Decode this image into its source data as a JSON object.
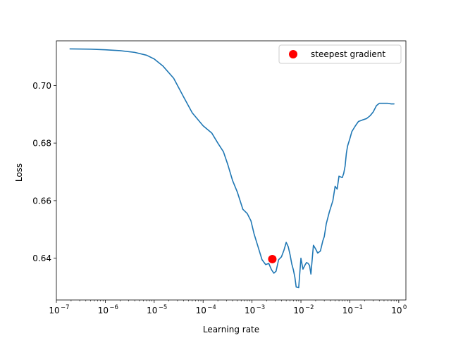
{
  "chart_data": {
    "type": "line",
    "title": "",
    "xlabel": "Learning rate",
    "ylabel": "Loss",
    "xscale": "log",
    "xlim": [
      1e-07,
      1.4
    ],
    "ylim": [
      0.6255,
      0.7155
    ],
    "grid": false,
    "legend_placement": "top-right",
    "x_ticks": [
      {
        "value": 1e-07,
        "label": "10",
        "exp": "−7"
      },
      {
        "value": 1e-06,
        "label": "10",
        "exp": "−6"
      },
      {
        "value": 1e-05,
        "label": "10",
        "exp": "−5"
      },
      {
        "value": 0.0001,
        "label": "10",
        "exp": "−4"
      },
      {
        "value": 0.001,
        "label": "10",
        "exp": "−3"
      },
      {
        "value": 0.01,
        "label": "10",
        "exp": "−2"
      },
      {
        "value": 0.1,
        "label": "10",
        "exp": "−1"
      },
      {
        "value": 1,
        "label": "10",
        "exp": "0"
      }
    ],
    "y_ticks": [
      {
        "value": 0.64,
        "label": "0.64"
      },
      {
        "value": 0.66,
        "label": "0.66"
      },
      {
        "value": 0.68,
        "label": "0.68"
      },
      {
        "value": 0.7,
        "label": "0.70"
      }
    ],
    "series": [
      {
        "color": "#1f77b4",
        "x": [
          1.9e-07,
          5e-07,
          1e-06,
          2e-06,
          4e-06,
          7e-06,
          1e-05,
          1.5e-05,
          2.5e-05,
          4e-05,
          6e-05,
          0.0001,
          0.00015,
          0.0002,
          0.00026,
          0.00032,
          0.0004,
          0.0005,
          0.00065,
          0.0008,
          0.00095,
          0.0011,
          0.0013,
          0.0016,
          0.0019,
          0.0022,
          0.0025,
          0.0028,
          0.0031,
          0.0035,
          0.004,
          0.0045,
          0.005,
          0.0055,
          0.006,
          0.0065,
          0.007,
          0.0075,
          0.008,
          0.009,
          0.01,
          0.011,
          0.012,
          0.013,
          0.014,
          0.015,
          0.016,
          0.018,
          0.02,
          0.022,
          0.025,
          0.028,
          0.03,
          0.033,
          0.038,
          0.045,
          0.05,
          0.055,
          0.06,
          0.07,
          0.075,
          0.08,
          0.085,
          0.09,
          0.1,
          0.11,
          0.13,
          0.15,
          0.18,
          0.22,
          0.26,
          0.3,
          0.35,
          0.4,
          0.5,
          0.6,
          0.7,
          0.8
        ],
        "y": [
          0.7127,
          0.7126,
          0.7124,
          0.7121,
          0.7115,
          0.7105,
          0.7092,
          0.7068,
          0.7025,
          0.696,
          0.6905,
          0.686,
          0.6835,
          0.68,
          0.677,
          0.6725,
          0.667,
          0.663,
          0.657,
          0.6555,
          0.653,
          0.6485,
          0.6445,
          0.6395,
          0.6378,
          0.6382,
          0.636,
          0.6348,
          0.6355,
          0.6395,
          0.6405,
          0.6428,
          0.6455,
          0.644,
          0.6412,
          0.638,
          0.636,
          0.6335,
          0.63,
          0.6298,
          0.64,
          0.6362,
          0.6375,
          0.6385,
          0.6382,
          0.6375,
          0.6345,
          0.6445,
          0.6432,
          0.6418,
          0.6425,
          0.646,
          0.6475,
          0.652,
          0.656,
          0.66,
          0.665,
          0.664,
          0.6685,
          0.668,
          0.6695,
          0.672,
          0.6765,
          0.679,
          0.6815,
          0.684,
          0.686,
          0.6875,
          0.688,
          0.6885,
          0.6895,
          0.6908,
          0.693,
          0.6938,
          0.6938,
          0.6938,
          0.6936,
          0.6936
        ]
      }
    ],
    "marker": {
      "label": "steepest gradient",
      "x": 0.0026,
      "y": 0.6397,
      "color": "#ff0000"
    },
    "legend": [
      {
        "label": "steepest gradient",
        "color": "#ff0000",
        "shape": "circle"
      }
    ]
  }
}
